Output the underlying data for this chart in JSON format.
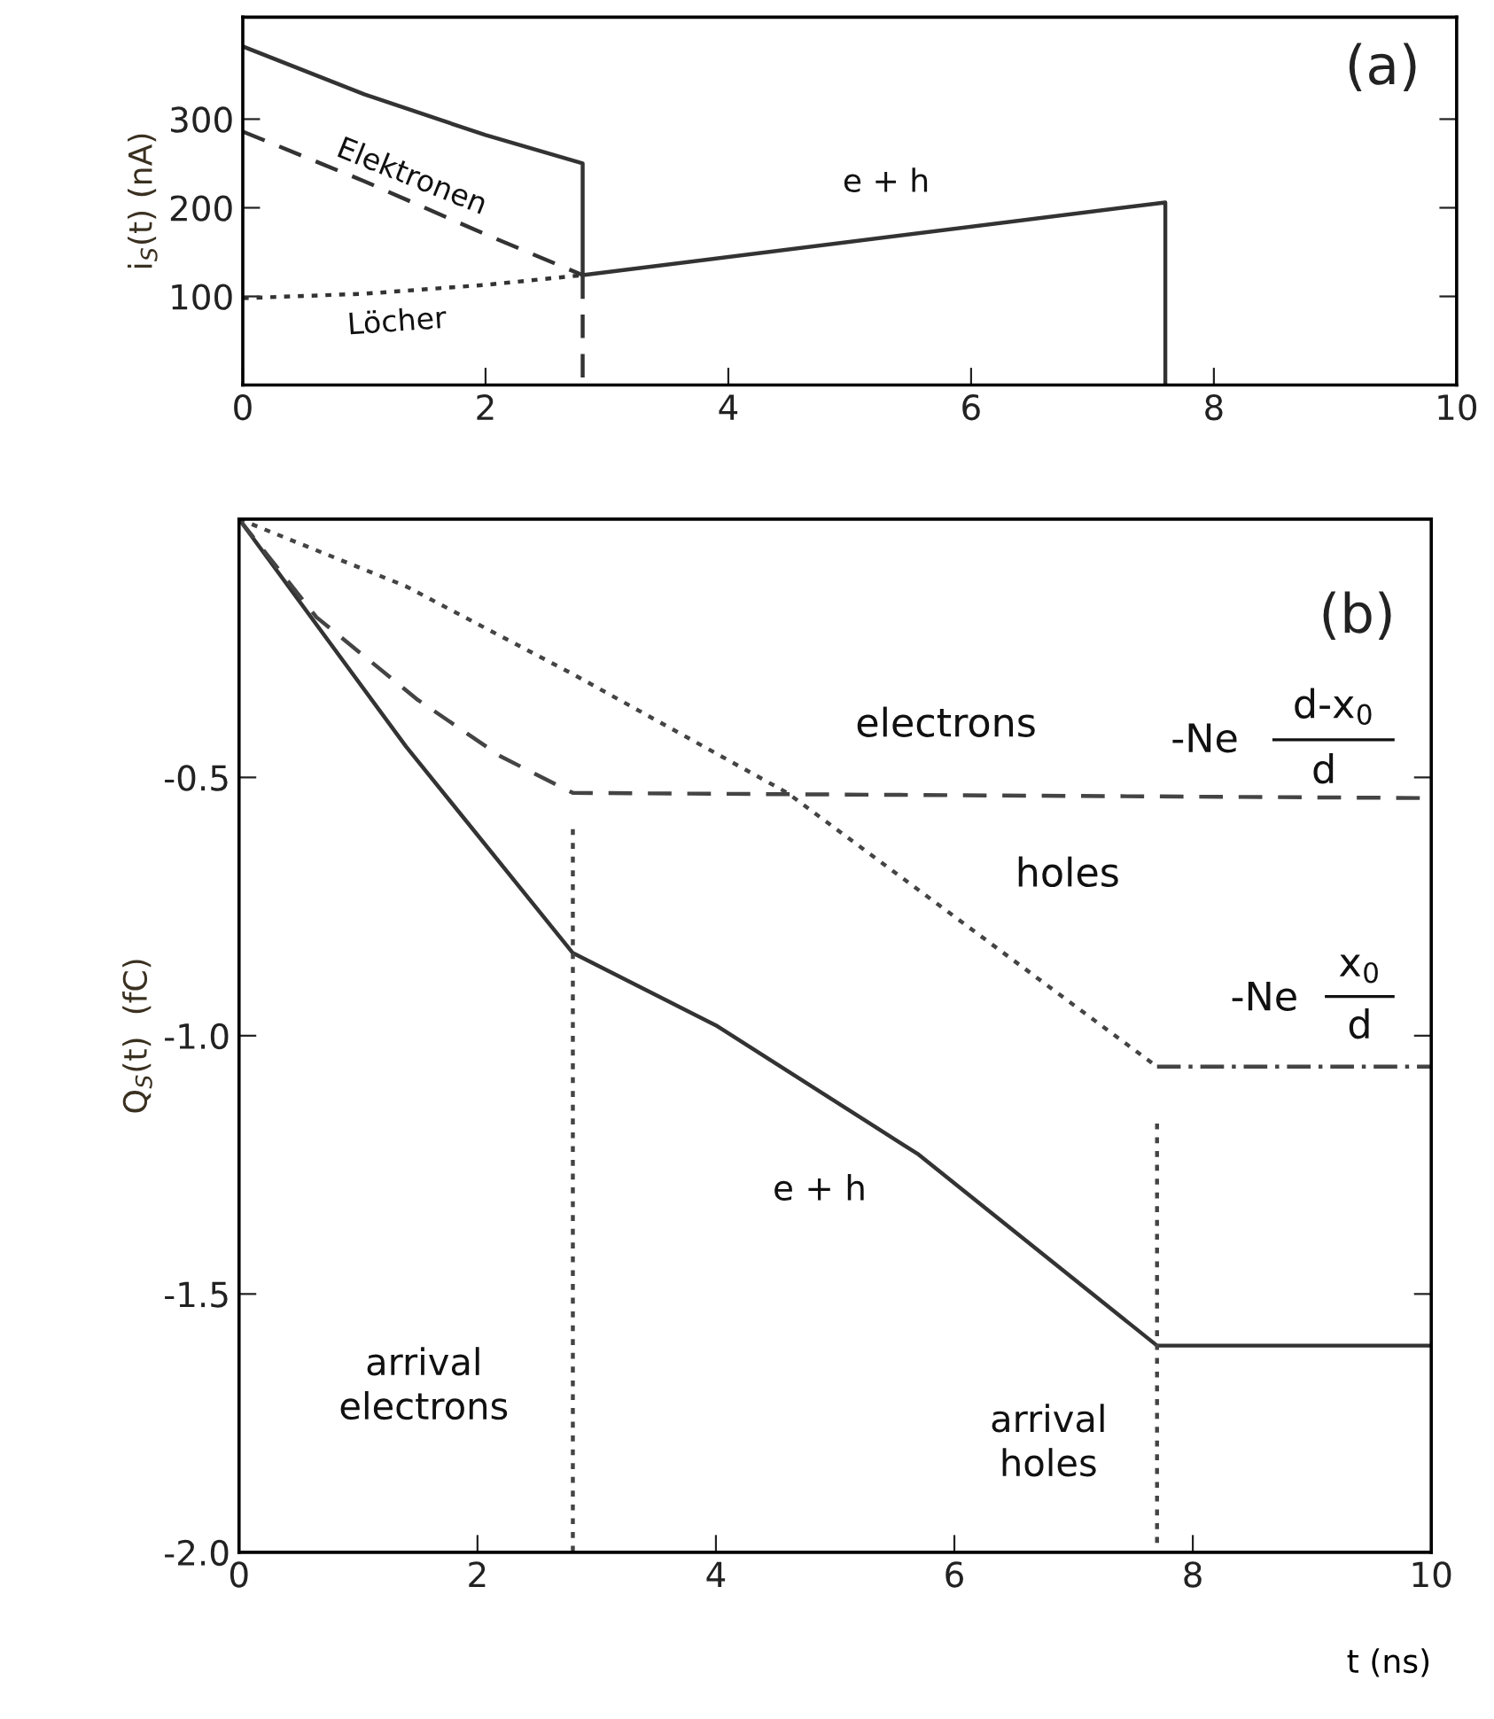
{
  "chart_data": [
    {
      "type": "line",
      "title": "(a)",
      "ylabel": "i$_{S}$(t) (nA)",
      "xlim": [
        0,
        10
      ],
      "ylim": [
        0,
        415
      ],
      "xticks": [
        0,
        2,
        4,
        6,
        8,
        10
      ],
      "yticks": [
        100,
        200,
        300
      ],
      "grid": false,
      "marker": "none",
      "series": [
        {
          "color": "#333333",
          "line_style": "solid",
          "x": [
            0,
            1,
            2,
            2.8,
            2.8,
            7.6,
            7.6
          ],
          "values": [
            382,
            328,
            282,
            250,
            124,
            206,
            0
          ]
        },
        {
          "color": "#333333",
          "line_style": "dashed",
          "x": [
            0,
            1,
            2,
            2.8
          ],
          "values": [
            286,
            230,
            170,
            124
          ]
        },
        {
          "color": "#333333",
          "line_style": "dotted",
          "x": [
            0,
            1,
            2,
            2.8
          ],
          "values": [
            98,
            103,
            113,
            124
          ]
        },
        {
          "color": "#333333",
          "line_style": "dashed",
          "x": [
            2.8,
            2.8
          ],
          "values": [
            124,
            0
          ]
        }
      ],
      "annotations": [
        "Elektronen",
        "Löcher",
        "e + h"
      ]
    },
    {
      "type": "line",
      "title": "(b)",
      "ylabel": "Q$_{S}$(t)  (fC)",
      "xlabel": "t (ns)",
      "xlim": [
        0,
        10
      ],
      "ylim": [
        -2.0,
        0
      ],
      "xticks": [
        0,
        2,
        4,
        6,
        8,
        10
      ],
      "yticks": [
        {
          "value": -2.0,
          "label": "-2.0"
        },
        {
          "value": -1.5,
          "label": "-1.5"
        },
        {
          "value": -1.0,
          "label": "-1.0"
        },
        {
          "value": -0.5,
          "label": "-0.5"
        }
      ],
      "grid": false,
      "marker": "none",
      "series": [
        {
          "color": "#333333",
          "line_style": "solid",
          "x": [
            0,
            1.4,
            2.8,
            4,
            5.7,
            7.7,
            10
          ],
          "values": [
            0,
            -0.44,
            -0.84,
            -0.98,
            -1.23,
            -1.6,
            -1.6
          ]
        },
        {
          "color": "#444444",
          "line_style": "dashed",
          "x": [
            0,
            0.65,
            1.5,
            2.2,
            2.8,
            10
          ],
          "values": [
            0,
            -0.19,
            -0.35,
            -0.46,
            -0.53,
            -0.54
          ]
        },
        {
          "color": "#444444",
          "line_style": "dotted",
          "x": [
            0,
            1.4,
            2.8,
            4.6,
            7.7
          ],
          "values": [
            0,
            -0.13,
            -0.3,
            -0.53,
            -1.06
          ]
        },
        {
          "color": "#444444",
          "line_style": "dashdot",
          "x": [
            7.7,
            10
          ],
          "values": [
            -1.06,
            -1.06
          ]
        },
        {
          "color": "#444444",
          "line_style": "dotted",
          "x": [
            2.8,
            2.8
          ],
          "values": [
            -0.6,
            -2.0
          ]
        },
        {
          "color": "#444444",
          "line_style": "dotted",
          "x": [
            7.7,
            7.7
          ],
          "values": [
            -1.17,
            -2.0
          ]
        }
      ],
      "annotations": [
        "electrons",
        "holes",
        "-Ne",
        "d-x$_{0}$",
        "d",
        "-Ne",
        "x$_{0}$",
        "d",
        "e + h",
        "arrival\nelectrons",
        "arrival\nholes"
      ]
    }
  ]
}
